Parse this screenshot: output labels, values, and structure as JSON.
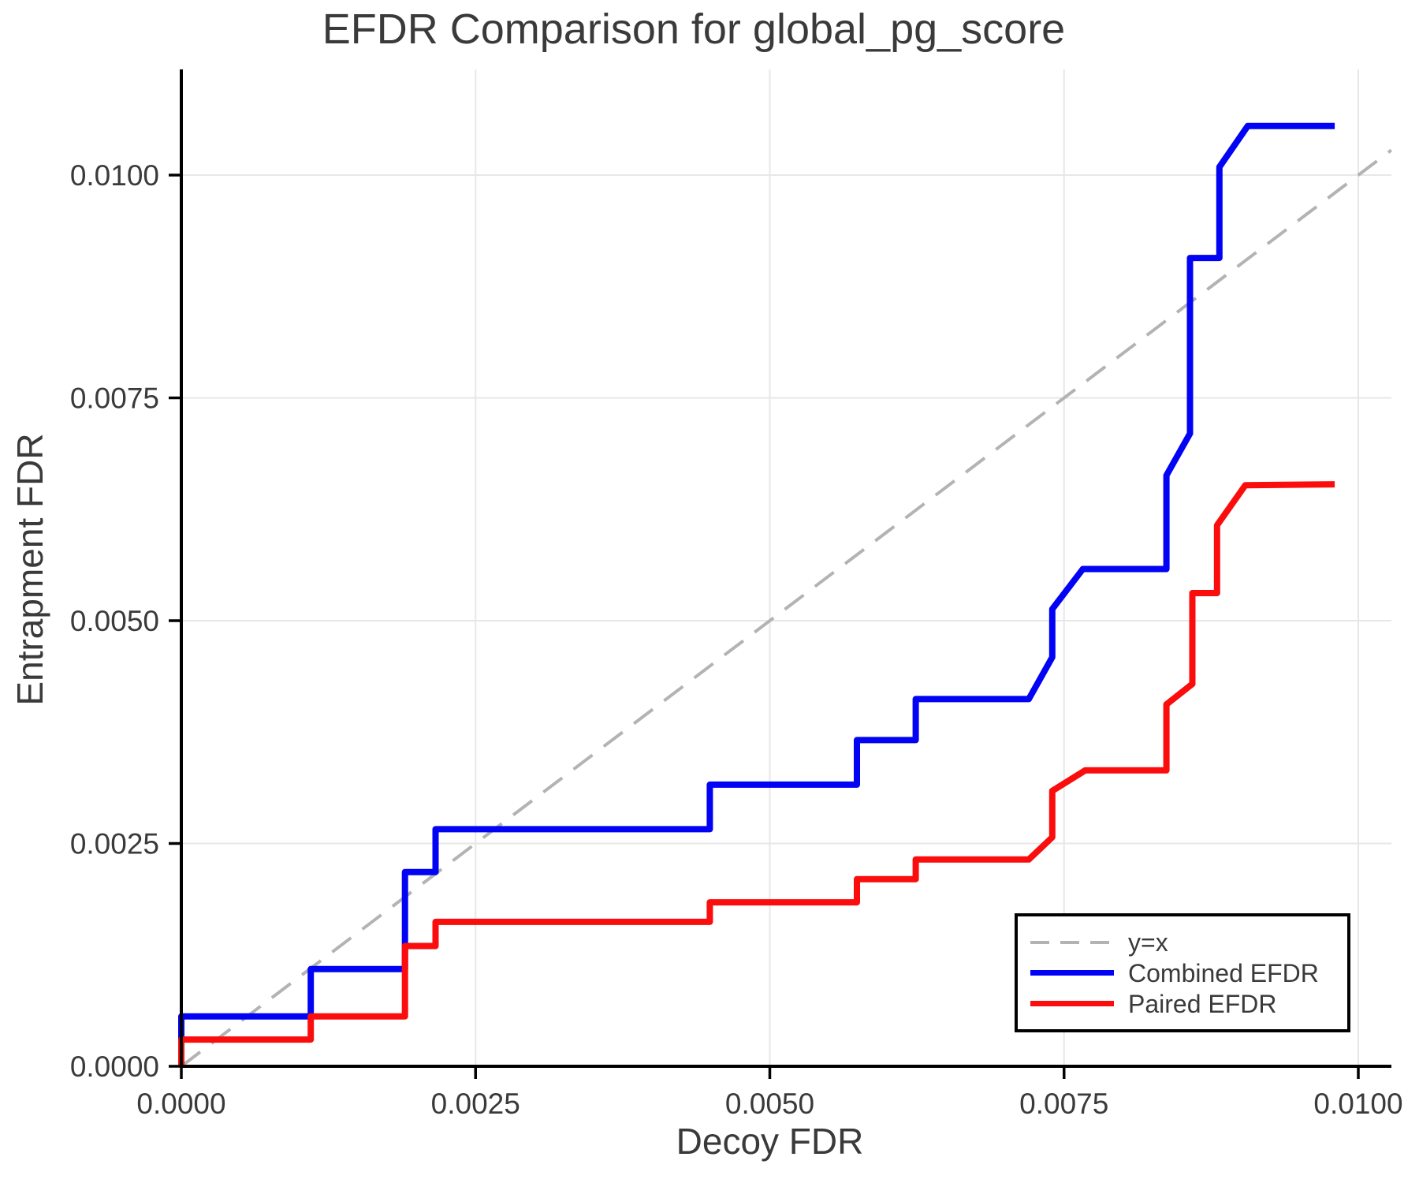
{
  "title": "EFDR Comparison for global_pg_score",
  "axes": {
    "xlabel": "Decoy FDR",
    "ylabel": "Entrapment FDR",
    "xticks": [
      0,
      0.0025,
      0.005,
      0.0075,
      0.01
    ],
    "xtick_labels": [
      "0.0000",
      "0.0025",
      "0.0050",
      "0.0075",
      "0.0100"
    ],
    "yticks": [
      0,
      0.0025,
      0.005,
      0.0075,
      0.01
    ],
    "ytick_labels": [
      "0.0000",
      "0.0025",
      "0.0050",
      "0.0075",
      "0.0100"
    ]
  },
  "legend": {
    "items": [
      {
        "label": "y=x",
        "color": "#b3b3b3",
        "dashed": true
      },
      {
        "label": "Combined EFDR",
        "color": "#0202f5",
        "dashed": false
      },
      {
        "label": "Paired EFDR",
        "color": "#fb0d0d",
        "dashed": false
      }
    ]
  },
  "colors": {
    "background": "#ffffff",
    "text": "#3a3a3a",
    "grid": "#e7e7e7",
    "spine": "#000000",
    "identity": "#b3b3b3",
    "combined": "#0202f5",
    "paired": "#fb0d0d"
  },
  "chart_data": {
    "type": "line",
    "title": "EFDR Comparison for global_pg_score",
    "xlabel": "Decoy FDR",
    "ylabel": "Entrapment FDR",
    "xlim": [
      0,
      0.01028
    ],
    "ylim": [
      0,
      0.01117
    ],
    "grid": true,
    "legend_position": "lower right",
    "series": [
      {
        "name": "y=x",
        "style": "dashed",
        "color": "#b3b3b3",
        "points": [
          [
            0,
            0
          ],
          [
            0.01028,
            0.01028
          ]
        ]
      },
      {
        "name": "Combined EFDR",
        "style": "solid",
        "color": "#0202f5",
        "points": [
          [
            0,
            0
          ],
          [
            0,
            0.00056
          ],
          [
            0.0011,
            0.00056
          ],
          [
            0.0011,
            0.00109
          ],
          [
            0.0019,
            0.00109
          ],
          [
            0.0019,
            0.00218
          ],
          [
            0.00216,
            0.00218
          ],
          [
            0.00216,
            0.00266
          ],
          [
            0.00449,
            0.00266
          ],
          [
            0.00449,
            0.00316
          ],
          [
            0.00574,
            0.00316
          ],
          [
            0.00574,
            0.00366
          ],
          [
            0.00624,
            0.00366
          ],
          [
            0.00624,
            0.00412
          ],
          [
            0.0072,
            0.00412
          ],
          [
            0.0074,
            0.00459
          ],
          [
            0.0074,
            0.00513
          ],
          [
            0.00766,
            0.00558
          ],
          [
            0.00837,
            0.00558
          ],
          [
            0.00837,
            0.00663
          ],
          [
            0.00857,
            0.0071
          ],
          [
            0.00857,
            0.00907
          ],
          [
            0.00882,
            0.00907
          ],
          [
            0.00882,
            0.01009
          ],
          [
            0.00906,
            0.01055
          ],
          [
            0.0098,
            0.01055
          ]
        ]
      },
      {
        "name": "Paired EFDR",
        "style": "solid",
        "color": "#fb0d0d",
        "points": [
          [
            0,
            0
          ],
          [
            0,
            0.0003
          ],
          [
            0.0011,
            0.0003
          ],
          [
            0.0011,
            0.00056
          ],
          [
            0.0019,
            0.00056
          ],
          [
            0.0019,
            0.00135
          ],
          [
            0.00216,
            0.00135
          ],
          [
            0.00216,
            0.00162
          ],
          [
            0.00449,
            0.00162
          ],
          [
            0.00449,
            0.00184
          ],
          [
            0.00574,
            0.00184
          ],
          [
            0.00574,
            0.0021
          ],
          [
            0.00624,
            0.0021
          ],
          [
            0.00624,
            0.00232
          ],
          [
            0.0072,
            0.00232
          ],
          [
            0.0074,
            0.00257
          ],
          [
            0.0074,
            0.00309
          ],
          [
            0.00768,
            0.00332
          ],
          [
            0.00837,
            0.00332
          ],
          [
            0.00837,
            0.00406
          ],
          [
            0.00859,
            0.00429
          ],
          [
            0.00859,
            0.00531
          ],
          [
            0.0088,
            0.00531
          ],
          [
            0.0088,
            0.00607
          ],
          [
            0.00904,
            0.00652
          ],
          [
            0.0098,
            0.00653
          ]
        ]
      }
    ]
  }
}
